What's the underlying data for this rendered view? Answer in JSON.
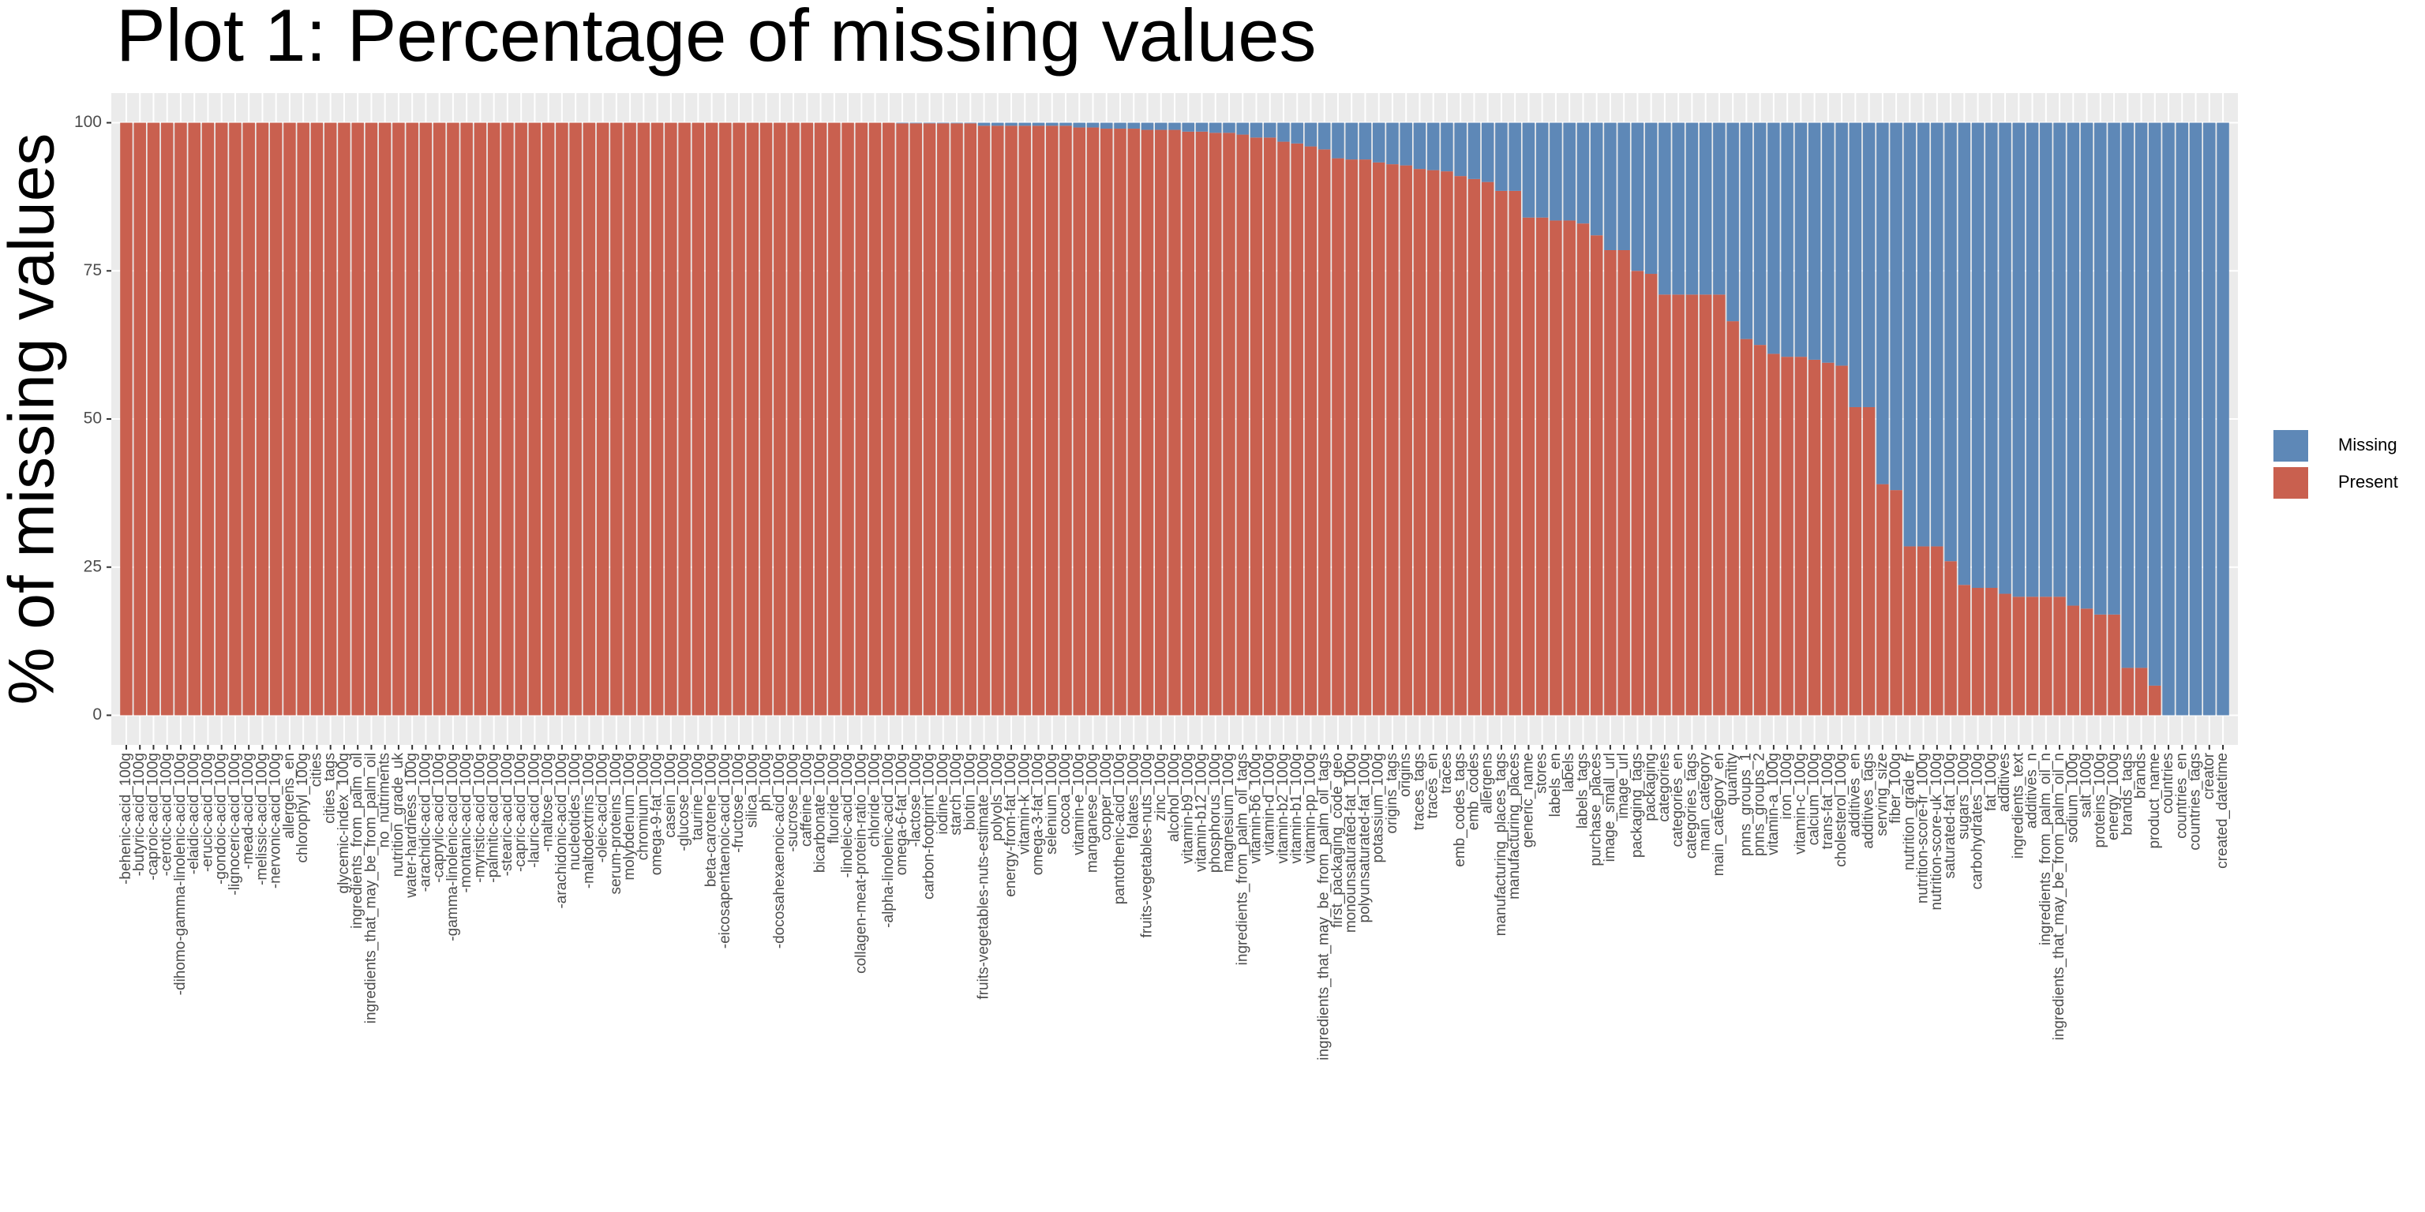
{
  "chart_data": {
    "type": "stacked_bar",
    "title": "Plot 1: Percentage of missing values",
    "y_label": "% of missing values",
    "categories": [
      "-behenic-acid_100g",
      "-butyric-acid_100g",
      "-caproic-acid_100g",
      "-cerotic-acid_100g",
      "-dihomo-gamma-linolenic-acid_100g",
      "-elaidic-acid_100g",
      "-erucic-acid_100g",
      "-gondoic-acid_100g",
      "-lignoceric-acid_100g",
      "-mead-acid_100g",
      "-melissic-acid_100g",
      "-nervonic-acid_100g",
      "allergens_en",
      "chlorophyl_100g",
      "cities",
      "cities_tags",
      "glycemic-index_100g",
      "ingredients_from_palm_oil",
      "ingredients_that_may_be_from_palm_oil",
      "no_nutriments",
      "nutrition_grade_uk",
      "water-hardness_100g",
      "-arachidic-acid_100g",
      "-caprylic-acid_100g",
      "-gamma-linolenic-acid_100g",
      "-montanic-acid_100g",
      "-myristic-acid_100g",
      "-palmitic-acid_100g",
      "-stearic-acid_100g",
      "-capric-acid_100g",
      "-lauric-acid_100g",
      "-maltose_100g",
      "-arachidonic-acid_100g",
      "nucleotides_100g",
      "-maltodextrins_100g",
      "-oleic-acid_100g",
      "serum-proteins_100g",
      "molybdenum_100g",
      "chromium_100g",
      "omega-9-fat_100g",
      "casein_100g",
      "-glucose_100g",
      "taurine_100g",
      "beta-carotene_100g",
      "-eicosapentaenoic-acid_100g",
      "-fructose_100g",
      "silica_100g",
      "ph_100g",
      "-docosahexaenoic-acid_100g",
      "-sucrose_100g",
      "caffeine_100g",
      "bicarbonate_100g",
      "fluoride_100g",
      "-linoleic-acid_100g",
      "collagen-meat-protein-ratio_100g",
      "chloride_100g",
      "-alpha-linolenic-acid_100g",
      "omega-6-fat_100g",
      "-lactose_100g",
      "carbon-footprint_100g",
      "iodine_100g",
      "starch_100g",
      "biotin_100g",
      "fruits-vegetables-nuts-estimate_100g",
      "polyols_100g",
      "energy-from-fat_100g",
      "vitamin-k_100g",
      "omega-3-fat_100g",
      "selenium_100g",
      "cocoa_100g",
      "vitamin-e_100g",
      "manganese_100g",
      "copper_100g",
      "pantothenic-acid_100g",
      "folates_100g",
      "fruits-vegetables-nuts_100g",
      "zinc_100g",
      "alcohol_100g",
      "vitamin-b9_100g",
      "vitamin-b12_100g",
      "phosphorus_100g",
      "magnesium_100g",
      "ingredients_from_palm_oil_tags",
      "vitamin-b6_100g",
      "vitamin-d_100g",
      "vitamin-b2_100g",
      "vitamin-b1_100g",
      "vitamin-pp_100g",
      "ingredients_that_may_be_from_palm_oil_tags",
      "first_packaging_code_geo",
      "monounsaturated-fat_100g",
      "polyunsaturated-fat_100g",
      "potassium_100g",
      "origins_tags",
      "origins",
      "traces_tags",
      "traces_en",
      "traces",
      "emb_codes_tags",
      "emb_codes",
      "allergens",
      "manufacturing_places_tags",
      "manufacturing_places",
      "generic_name",
      "stores",
      "labels_en",
      "labels",
      "labels_tags",
      "purchase_places",
      "image_small_url",
      "image_url",
      "packaging_tags",
      "packaging",
      "categories",
      "categories_en",
      "categories_tags",
      "main_category",
      "main_category_en",
      "quantity",
      "pnns_groups_1",
      "pnns_groups_2",
      "vitamin-a_100g",
      "iron_100g",
      "vitamin-c_100g",
      "calcium_100g",
      "trans-fat_100g",
      "cholesterol_100g",
      "additives_en",
      "additives_tags",
      "serving_size",
      "fiber_100g",
      "nutrition_grade_fr",
      "nutrition-score-fr_100g",
      "nutrition-score-uk_100g",
      "saturated-fat_100g",
      "sugars_100g",
      "carbohydrates_100g",
      "fat_100g",
      "additives",
      "ingredients_text",
      "additives_n",
      "ingredients_from_palm_oil_n",
      "ingredients_that_may_be_from_palm_oil_n",
      "sodium_100g",
      "salt_100g",
      "proteins_100g",
      "energy_100g",
      "brands_tags",
      "brands",
      "product_name",
      "countries",
      "countries_en",
      "countries_tags",
      "creator",
      "created_datetime"
    ],
    "series": [
      {
        "name": "Missing",
        "color": "#5e88b7",
        "values": [
          0,
          0,
          0,
          0,
          0,
          0,
          0,
          0,
          0,
          0,
          0,
          0,
          0,
          0,
          0,
          0,
          0,
          0,
          0,
          0,
          0,
          0,
          0,
          0,
          0,
          0,
          0,
          0,
          0,
          0,
          0,
          0,
          0,
          0,
          0,
          0,
          0,
          0,
          0,
          0,
          0,
          0,
          0,
          0,
          0,
          0,
          0,
          0,
          0,
          0,
          0,
          0,
          0,
          0,
          0,
          0,
          0,
          0.1,
          0.1,
          0.1,
          0.1,
          0.1,
          0.1,
          0.5,
          0.5,
          0.5,
          0.5,
          0.5,
          0.5,
          0.5,
          0.8,
          0.8,
          1,
          1,
          1,
          1.2,
          1.2,
          1.2,
          1.5,
          1.5,
          1.7,
          1.7,
          2,
          2.5,
          2.5,
          3.2,
          3.5,
          4,
          4.5,
          6,
          6.2,
          6.2,
          6.7,
          7,
          7.2,
          7.8,
          8,
          8.2,
          9,
          9.5,
          10,
          11.5,
          11.5,
          16,
          16,
          16.5,
          16.5,
          17,
          19,
          21.5,
          21.5,
          25,
          25.5,
          29,
          29,
          29,
          29,
          29,
          33.5,
          36.5,
          37.5,
          39,
          39.5,
          39.5,
          40,
          40.5,
          41,
          48,
          48,
          61,
          62,
          71.5,
          71.5,
          71.5,
          74,
          78,
          78.5,
          78.5,
          79.5,
          80,
          80,
          80,
          80,
          81.5,
          82,
          83,
          83,
          92,
          92,
          95,
          100,
          100,
          100,
          100,
          100
        ]
      },
      {
        "name": "Present",
        "color": "#c9604f",
        "values": [
          100,
          100,
          100,
          100,
          100,
          100,
          100,
          100,
          100,
          100,
          100,
          100,
          100,
          100,
          100,
          100,
          100,
          100,
          100,
          100,
          100,
          100,
          100,
          100,
          100,
          100,
          100,
          100,
          100,
          100,
          100,
          100,
          100,
          100,
          100,
          100,
          100,
          100,
          100,
          100,
          100,
          100,
          100,
          100,
          100,
          100,
          100,
          100,
          100,
          100,
          100,
          100,
          100,
          100,
          100,
          100,
          100,
          99.9,
          99.9,
          99.9,
          99.9,
          99.9,
          99.9,
          99.5,
          99.5,
          99.5,
          99.5,
          99.5,
          99.5,
          99.5,
          99.2,
          99.2,
          99,
          99,
          99,
          98.8,
          98.8,
          98.8,
          98.5,
          98.5,
          98.3,
          98.3,
          98,
          97.5,
          97.5,
          96.8,
          96.5,
          96,
          95.5,
          94,
          93.8,
          93.8,
          93.3,
          93,
          92.8,
          92.2,
          92,
          91.8,
          91,
          90.5,
          90,
          88.5,
          88.5,
          84,
          84,
          83.5,
          83.5,
          83,
          81,
          78.5,
          78.5,
          75,
          74.5,
          71,
          71,
          71,
          71,
          71,
          66.5,
          63.5,
          62.5,
          61,
          60.5,
          60.5,
          60,
          59.5,
          59,
          52,
          52,
          39,
          38,
          28.5,
          28.5,
          28.5,
          26,
          22,
          21.5,
          21.5,
          20.5,
          20,
          20,
          20,
          20,
          18.5,
          18,
          17,
          17,
          8,
          8,
          5,
          0,
          0,
          0,
          0,
          0
        ]
      }
    ],
    "ylim": [
      -5,
      105
    ],
    "yticks": [
      0,
      25,
      50,
      75,
      100
    ],
    "grid": true,
    "legend": "right"
  }
}
